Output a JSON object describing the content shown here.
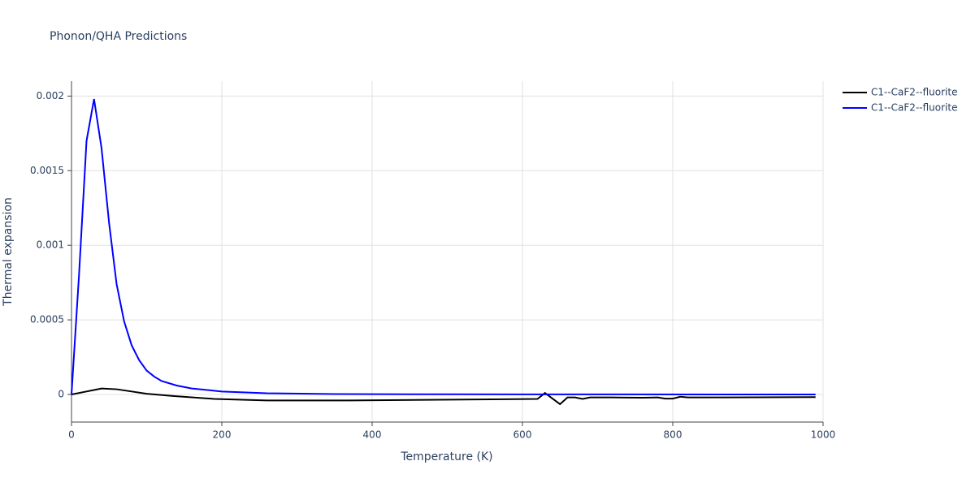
{
  "chart_data": {
    "type": "line",
    "title": "Phonon/QHA Predictions",
    "x_label": "Temperature (K)",
    "y_label": "Thermal expansion",
    "xlim": [
      0,
      1000
    ],
    "xticks": [
      0,
      200,
      400,
      600,
      800,
      1000
    ],
    "ylim": [
      -0.000185,
      0.0021
    ],
    "yticks": [
      0,
      0.0005,
      0.001,
      0.0015,
      0.002
    ],
    "grid": true,
    "legend": "top-right",
    "series": [
      {
        "name": "C1--CaF2--fluorite",
        "color": "#000000",
        "x": [
          0,
          20,
          30,
          40,
          60,
          80,
          100,
          135,
          190,
          260,
          370,
          620,
          630,
          650,
          660,
          670,
          680,
          690,
          720,
          760,
          780,
          790,
          800,
          810,
          820,
          990
        ],
        "values": [
          0,
          2e-05,
          3e-05,
          4e-05,
          3.5e-05,
          2e-05,
          5e-06,
          -1e-05,
          -3e-05,
          -4e-05,
          -4e-05,
          -3e-05,
          1e-05,
          -6.5e-05,
          -2e-05,
          -2e-05,
          -3e-05,
          -2e-05,
          -2e-05,
          -2.2e-05,
          -2e-05,
          -2.8e-05,
          -2.8e-05,
          -1.5e-05,
          -2e-05,
          -1.8e-05
        ]
      },
      {
        "name": "C1--CaF2--fluorite",
        "color": "#0000ff",
        "x": [
          0,
          10,
          20,
          30,
          40,
          50,
          60,
          70,
          80,
          90,
          100,
          110,
          120,
          140,
          160,
          200,
          260,
          350,
          500,
          990
        ],
        "values": [
          0,
          0.0008,
          0.0017,
          0.00198,
          0.00165,
          0.00115,
          0.00074,
          0.00049,
          0.00033,
          0.00023,
          0.00016,
          0.00012,
          9e-05,
          6e-05,
          4e-05,
          2e-05,
          8e-06,
          3e-06,
          1e-06,
          0
        ]
      }
    ]
  }
}
